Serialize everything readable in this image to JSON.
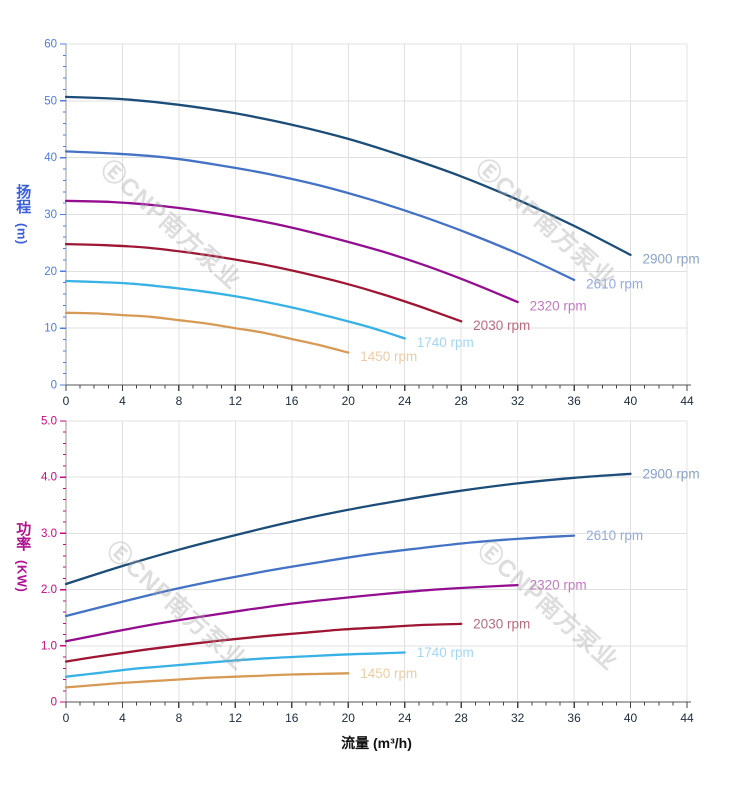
{
  "watermark": {
    "text": "ⒺCNP南方泵业"
  },
  "x_axis": {
    "title": "流量 (m³/h)",
    "min": 0,
    "max": 44,
    "major_step": 4,
    "minor_step": 1,
    "tick_labels": [
      "0",
      "4",
      "8",
      "12",
      "16",
      "20",
      "24",
      "28",
      "32",
      "36",
      "40",
      "44"
    ],
    "tick_label_color": "#1c2b3c",
    "axis_line_color": "#555555",
    "tick_color": "#444444"
  },
  "colors": {
    "grid": "#e0e0e0",
    "y_axis_line": "#9a9a9a"
  },
  "chart_data": [
    {
      "type": "line",
      "name": "head-curves",
      "ylabel": "扬程 (m)",
      "ylabel_chars": "扬程",
      "ylabel_unit": "(m)",
      "xlabel": "流量 (m³/h)",
      "xlim": [
        0,
        44
      ],
      "ylim": [
        0,
        60
      ],
      "y_major_step": 10,
      "y_minor_step": 2,
      "y_tick_labels": [
        "0",
        "10",
        "20",
        "30",
        "40",
        "50",
        "60"
      ],
      "grid": true,
      "legend_position": "curve-end-labels",
      "axis_title_color": "#3b5fd8",
      "tick_color": "#4f7ce0",
      "series": [
        {
          "name": "2900 rpm",
          "color": "#1c4c78",
          "label_color": "#88a3c8",
          "x": [
            0,
            4,
            8,
            12,
            16,
            20,
            24,
            28,
            32,
            36,
            40
          ],
          "y": [
            50.7,
            50.3,
            49.3,
            47.8,
            45.8,
            43.3,
            40.2,
            36.7,
            32.6,
            28.0,
            22.9
          ]
        },
        {
          "name": "2610 rpm",
          "color": "#4472c4",
          "label_color": "#93abdf",
          "x": [
            0,
            3.6,
            7.2,
            10.8,
            14.4,
            18,
            21.6,
            25.2,
            28.8,
            32.4,
            36
          ],
          "y": [
            41.1,
            40.7,
            40.0,
            38.7,
            37.1,
            35.1,
            32.6,
            29.7,
            26.4,
            22.7,
            18.5
          ]
        },
        {
          "name": "2320 rpm",
          "color": "#930f90",
          "label_color": "#c579c3",
          "x": [
            0,
            3.2,
            6.4,
            9.6,
            12.8,
            16,
            19.2,
            22.4,
            25.6,
            28.8,
            32
          ],
          "y": [
            32.4,
            32.2,
            31.6,
            30.6,
            29.3,
            27.7,
            25.7,
            23.5,
            20.9,
            17.9,
            14.6
          ]
        },
        {
          "name": "2030 rpm",
          "color": "#9e1634",
          "label_color": "#b76b7c",
          "x": [
            0,
            2.8,
            5.6,
            8.4,
            11.2,
            14,
            16.8,
            19.6,
            22.4,
            25.2,
            28
          ],
          "y": [
            24.8,
            24.6,
            24.2,
            23.4,
            22.4,
            21.2,
            19.7,
            18.0,
            16.0,
            13.7,
            11.2
          ]
        },
        {
          "name": "1740 rpm",
          "color": "#38b1e6",
          "label_color": "#a3d6f2",
          "x": [
            0,
            2.4,
            4.8,
            7.2,
            9.6,
            12,
            14.4,
            16.8,
            19.2,
            21.6,
            24
          ],
          "y": [
            18.3,
            18.1,
            17.8,
            17.2,
            16.5,
            15.6,
            14.5,
            13.2,
            11.7,
            10.1,
            8.2
          ]
        },
        {
          "name": "1450 rpm",
          "color": "#d69a55",
          "label_color": "#eccca3",
          "x": [
            0,
            2,
            4,
            6,
            8,
            10,
            12,
            14,
            16,
            18,
            20
          ],
          "y": [
            12.7,
            12.6,
            12.3,
            12.0,
            11.4,
            10.8,
            10.0,
            9.2,
            8.1,
            7.0,
            5.7
          ]
        }
      ]
    },
    {
      "type": "line",
      "name": "power-curves",
      "ylabel": "功率 (KW)",
      "ylabel_chars": "功率",
      "ylabel_unit": "(KW)",
      "xlabel": "流量 (m³/h)",
      "xlim": [
        0,
        44
      ],
      "ylim": [
        0,
        5
      ],
      "y_major_step": 1,
      "y_minor_step": 0.2,
      "y_tick_labels": [
        "0",
        "1.0",
        "2.0",
        "3.0",
        "4.0",
        "5.0"
      ],
      "grid": true,
      "legend_position": "curve-end-labels",
      "axis_title_color": "#b0138f",
      "tick_color": "#c40a83",
      "series": [
        {
          "name": "2900 rpm",
          "color": "#1c4c78",
          "label_color": "#88a3c8",
          "x": [
            0,
            4,
            8,
            12,
            16,
            20,
            24,
            28,
            32,
            36,
            40
          ],
          "y": [
            2.1,
            2.42,
            2.71,
            2.97,
            3.21,
            3.42,
            3.6,
            3.76,
            3.89,
            3.99,
            4.06
          ]
        },
        {
          "name": "2610 rpm",
          "color": "#4472c4",
          "label_color": "#93abdf",
          "x": [
            0,
            3.6,
            7.2,
            10.8,
            14.4,
            18,
            21.6,
            25.2,
            28.8,
            32.4,
            36
          ],
          "y": [
            1.53,
            1.76,
            1.98,
            2.17,
            2.34,
            2.49,
            2.63,
            2.74,
            2.84,
            2.91,
            2.96
          ]
        },
        {
          "name": "2320 rpm",
          "color": "#930f90",
          "label_color": "#c579c3",
          "x": [
            0,
            3.2,
            6.4,
            9.6,
            12.8,
            16,
            19.2,
            22.4,
            25.6,
            28.8,
            32
          ],
          "y": [
            1.08,
            1.24,
            1.39,
            1.52,
            1.64,
            1.75,
            1.84,
            1.92,
            1.99,
            2.04,
            2.08
          ]
        },
        {
          "name": "2030 rpm",
          "color": "#9e1634",
          "label_color": "#b76b7c",
          "x": [
            0,
            2.8,
            5.6,
            8.4,
            11.2,
            14,
            16.8,
            19.6,
            22.4,
            25.2,
            28
          ],
          "y": [
            0.72,
            0.83,
            0.93,
            1.02,
            1.1,
            1.17,
            1.23,
            1.29,
            1.33,
            1.37,
            1.39
          ]
        },
        {
          "name": "1740 rpm",
          "color": "#38b1e6",
          "label_color": "#a3d6f2",
          "x": [
            0,
            2.4,
            4.8,
            7.2,
            9.6,
            12,
            14.4,
            16.8,
            19.2,
            21.6,
            24
          ],
          "y": [
            0.45,
            0.52,
            0.59,
            0.64,
            0.69,
            0.74,
            0.78,
            0.81,
            0.84,
            0.86,
            0.88
          ]
        },
        {
          "name": "1450 rpm",
          "color": "#d69a55",
          "label_color": "#eccca3",
          "x": [
            0,
            2,
            4,
            6,
            8,
            10,
            12,
            14,
            16,
            18,
            20
          ],
          "y": [
            0.26,
            0.3,
            0.34,
            0.37,
            0.4,
            0.43,
            0.45,
            0.47,
            0.49,
            0.5,
            0.51
          ]
        }
      ]
    }
  ]
}
